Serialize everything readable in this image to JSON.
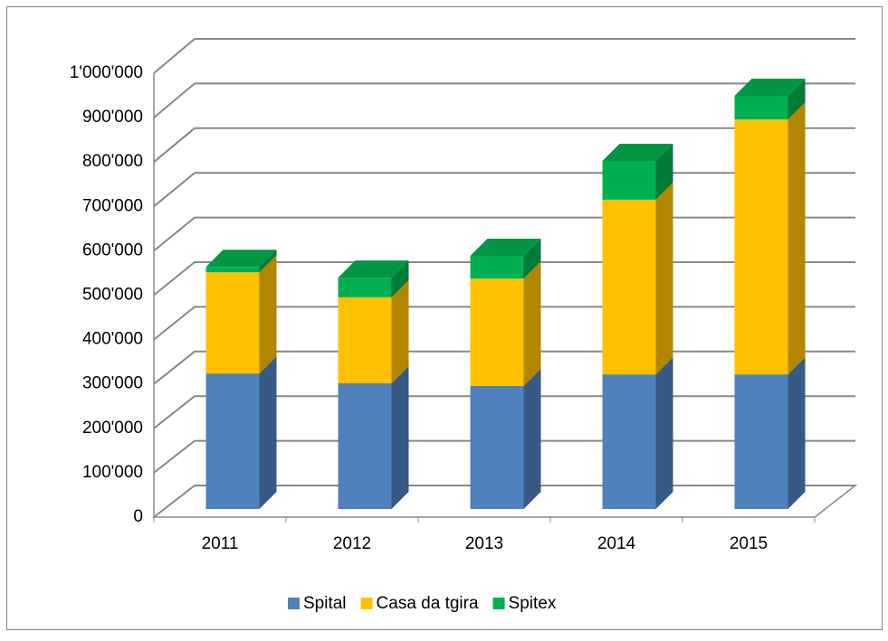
{
  "chart_data": {
    "type": "bar3d_stacked",
    "categories": [
      "2011",
      "2012",
      "2013",
      "2014",
      "2015"
    ],
    "series": [
      {
        "name": "Spital",
        "color": "#4f81bd",
        "values": [
          304000,
          282000,
          276000,
          302000,
          302000
        ]
      },
      {
        "name": "Casa da tgira",
        "color": "#ffc000",
        "values": [
          227000,
          193000,
          241000,
          392000,
          572000
        ]
      },
      {
        "name": "Spitex",
        "color": "#00b050",
        "values": [
          12000,
          44000,
          51000,
          87000,
          53000
        ]
      }
    ],
    "ylim": [
      0,
      1000000
    ],
    "yticks": [
      0,
      {
        "value": 100000,
        "label": "100'000"
      },
      {
        "value": 200000,
        "label": "200'000"
      },
      {
        "value": 300000,
        "label": "300'000"
      },
      {
        "value": 400000,
        "label": "400'000"
      },
      {
        "value": 500000,
        "label": "500'000"
      },
      {
        "value": 600000,
        "label": "600'000"
      },
      {
        "value": 700000,
        "label": "700'000"
      },
      {
        "value": 800000,
        "label": "800'000"
      },
      {
        "value": 900000,
        "label": "900'000"
      },
      {
        "value": 1000000,
        "label": "1'000'000"
      }
    ],
    "grid": true,
    "legend": "bottom"
  }
}
